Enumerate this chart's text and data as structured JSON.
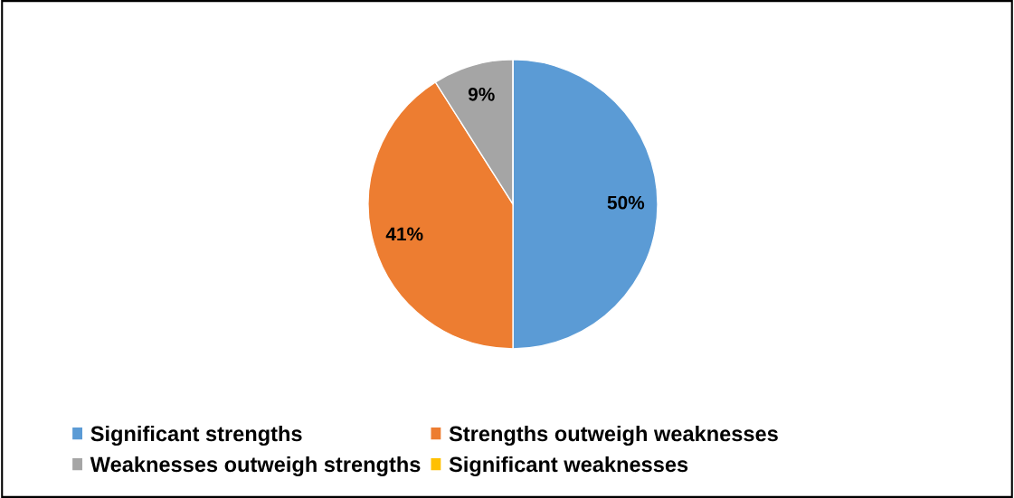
{
  "chart_data": {
    "type": "pie",
    "categories": [
      "Significant strengths",
      "Strengths outweigh weaknesses",
      "Weaknesses outweigh strengths",
      "Significant weaknesses"
    ],
    "values": [
      50,
      41,
      9,
      0
    ],
    "colors": [
      "#5b9bd5",
      "#ed7d31",
      "#a5a5a5",
      "#ffc000"
    ],
    "value_labels": [
      "50%",
      "41%",
      "9%",
      null
    ],
    "legend": "bottom"
  }
}
